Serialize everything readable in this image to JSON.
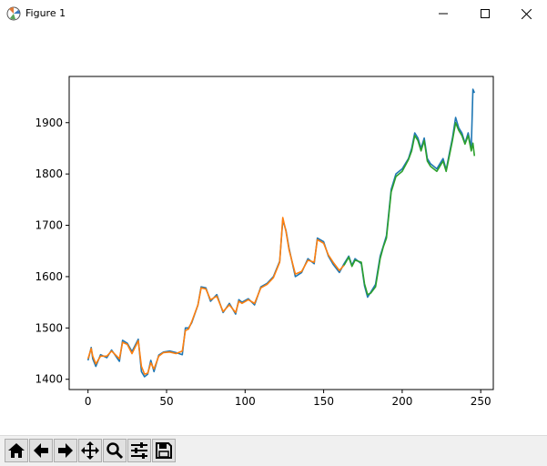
{
  "window": {
    "title": "Figure 1",
    "controls": [
      "minimize",
      "maximize",
      "close"
    ]
  },
  "toolbar": {
    "tools": [
      {
        "name": "home",
        "icon": "home-icon"
      },
      {
        "name": "back",
        "icon": "arrow-left-icon"
      },
      {
        "name": "forward",
        "icon": "arrow-right-icon"
      },
      {
        "name": "pan",
        "icon": "move-icon"
      },
      {
        "name": "zoom",
        "icon": "magnifier-icon"
      },
      {
        "name": "configure-subplots",
        "icon": "sliders-icon"
      },
      {
        "name": "save",
        "icon": "floppy-disk-icon"
      }
    ]
  },
  "chart_data": {
    "type": "line",
    "title": "",
    "xlabel": "",
    "ylabel": "",
    "xlim": [
      -12,
      258
    ],
    "ylim": [
      1380,
      1990
    ],
    "xticks": [
      0,
      50,
      100,
      150,
      200,
      250
    ],
    "yticks": [
      1400,
      1500,
      1600,
      1700,
      1800,
      1900
    ],
    "grid": false,
    "series": [
      {
        "color": "#1f77b4",
        "x": [
          0,
          2,
          3,
          5,
          8,
          12,
          15,
          20,
          22,
          25,
          28,
          32,
          34,
          36,
          38,
          40,
          42,
          45,
          48,
          52,
          56,
          60,
          62,
          64,
          66,
          70,
          72,
          75,
          78,
          82,
          86,
          90,
          94,
          96,
          98,
          102,
          106,
          110,
          114,
          118,
          122,
          124,
          126,
          128,
          132,
          136,
          140,
          144,
          146,
          150,
          153,
          156,
          160,
          163,
          166,
          168,
          170,
          174,
          176,
          178,
          180,
          183,
          186,
          188,
          190,
          193,
          196,
          200,
          204,
          206,
          208,
          210,
          212,
          214,
          216,
          218,
          222,
          226,
          228,
          230,
          232,
          234,
          236,
          238,
          240,
          242,
          244,
          245,
          246
        ],
        "y": [
          1437,
          1462,
          1440,
          1425,
          1448,
          1442,
          1457,
          1435,
          1476,
          1470,
          1454,
          1478,
          1415,
          1405,
          1410,
          1437,
          1415,
          1447,
          1453,
          1455,
          1452,
          1448,
          1500,
          1500,
          1510,
          1545,
          1580,
          1578,
          1552,
          1565,
          1530,
          1548,
          1527,
          1555,
          1550,
          1557,
          1545,
          1580,
          1587,
          1600,
          1630,
          1710,
          1690,
          1655,
          1600,
          1608,
          1635,
          1625,
          1675,
          1668,
          1640,
          1624,
          1608,
          1625,
          1640,
          1622,
          1635,
          1625,
          1582,
          1560,
          1570,
          1585,
          1640,
          1660,
          1680,
          1770,
          1800,
          1810,
          1830,
          1850,
          1880,
          1870,
          1850,
          1870,
          1830,
          1820,
          1810,
          1830,
          1808,
          1840,
          1870,
          1910,
          1890,
          1880,
          1860,
          1880,
          1850,
          1965,
          1958
        ]
      },
      {
        "color": "#ff7f0e",
        "x": [
          0,
          2,
          3,
          5,
          8,
          12,
          15,
          20,
          22,
          25,
          28,
          32,
          34,
          36,
          38,
          40,
          42,
          45,
          48,
          52,
          56,
          60,
          62,
          64,
          66,
          70,
          72,
          75,
          78,
          82,
          86,
          90,
          94,
          96,
          98,
          102,
          106,
          110,
          114,
          118,
          122,
          124,
          126,
          128,
          132,
          136,
          140,
          144,
          146,
          150,
          153,
          156,
          160,
          163
        ],
        "y": [
          1440,
          1460,
          1445,
          1430,
          1445,
          1445,
          1455,
          1440,
          1472,
          1468,
          1450,
          1475,
          1425,
          1410,
          1412,
          1432,
          1420,
          1445,
          1452,
          1453,
          1450,
          1455,
          1495,
          1498,
          1512,
          1545,
          1578,
          1576,
          1555,
          1562,
          1532,
          1545,
          1530,
          1552,
          1548,
          1555,
          1548,
          1578,
          1585,
          1598,
          1628,
          1715,
          1688,
          1652,
          1605,
          1610,
          1632,
          1628,
          1672,
          1665,
          1642,
          1628,
          1612,
          1622
        ]
      },
      {
        "color": "#2ca02c",
        "x": [
          163,
          166,
          168,
          170,
          174,
          176,
          178,
          180,
          183,
          186,
          188,
          190,
          193,
          196,
          200,
          204,
          206,
          208,
          210,
          212,
          214,
          216,
          218,
          222,
          226,
          228,
          230,
          232,
          234,
          236,
          238,
          240,
          242,
          244,
          245,
          246
        ],
        "y": [
          1622,
          1638,
          1620,
          1632,
          1628,
          1586,
          1565,
          1568,
          1580,
          1635,
          1658,
          1675,
          1765,
          1795,
          1805,
          1828,
          1845,
          1875,
          1865,
          1845,
          1865,
          1825,
          1815,
          1805,
          1825,
          1805,
          1835,
          1865,
          1900,
          1885,
          1875,
          1858,
          1875,
          1845,
          1860,
          1835
        ]
      }
    ]
  }
}
